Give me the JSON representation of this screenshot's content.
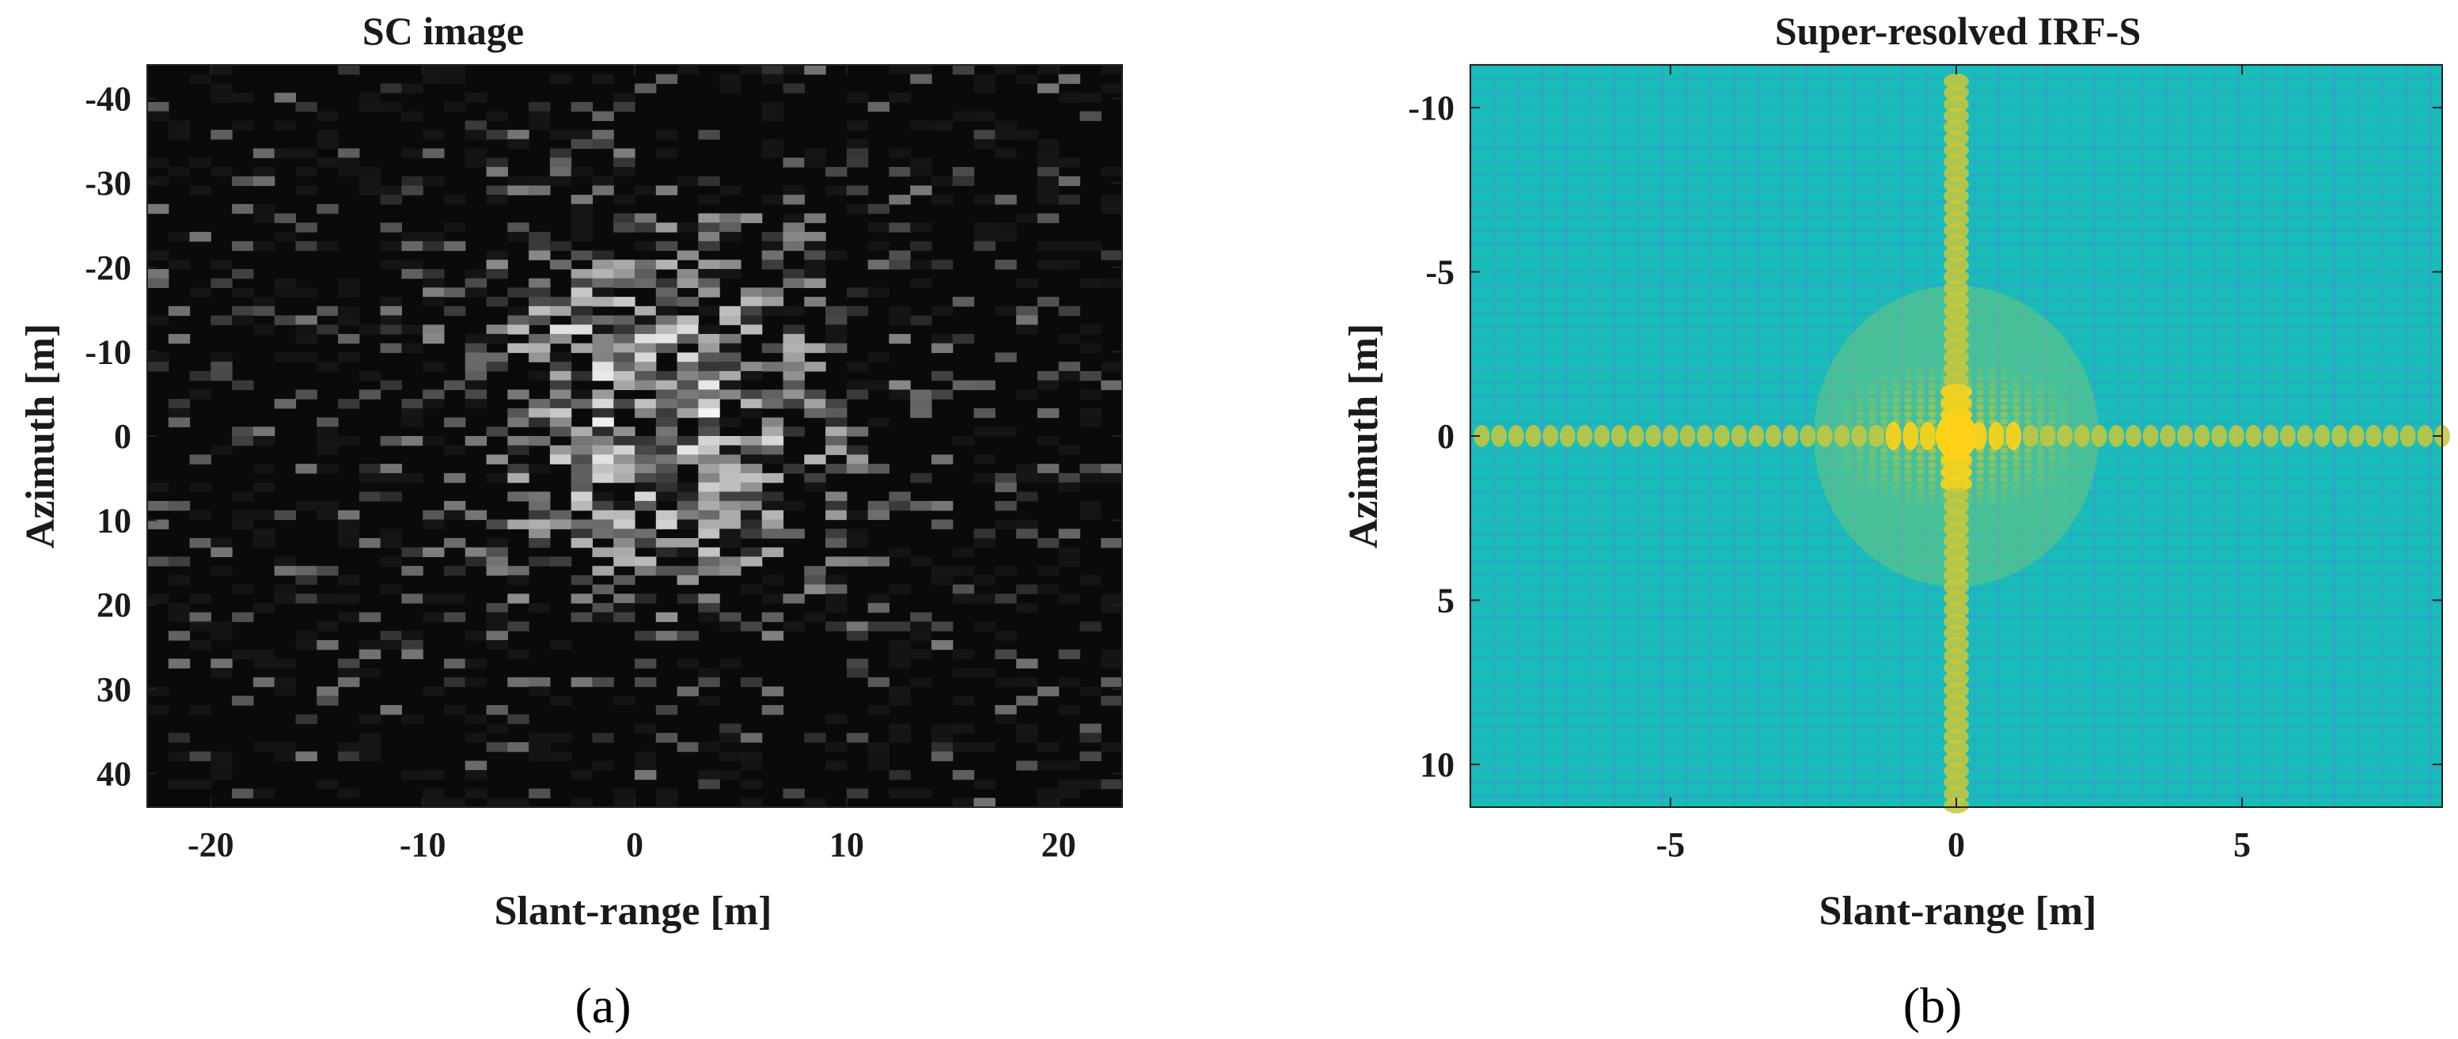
{
  "chart_data": [
    {
      "type": "heatmap",
      "panel_label": "(a)",
      "title": "SC image",
      "xlabel": "Slant-range [m]",
      "ylabel": "Azimuth [m]",
      "xlim": [
        -23,
        23
      ],
      "ylim": [
        44,
        -44
      ],
      "x_ticks": [
        -20,
        -10,
        0,
        10,
        20
      ],
      "x_tick_labels": [
        "-20",
        "-10",
        "0",
        "10",
        "20"
      ],
      "y_ticks": [
        -40,
        -30,
        -20,
        -10,
        0,
        10,
        20,
        30,
        40
      ],
      "y_tick_labels": [
        "-40",
        "-30",
        "-20",
        "-10",
        "0",
        "10",
        "20",
        "30",
        "40"
      ],
      "colormap": "gray",
      "background_color": "#0a0a0a",
      "cell_size_m": [
        1.0,
        1.1
      ],
      "bright_region": {
        "x_center": [
          1,
          -2,
          3
        ],
        "y_center": [
          -2,
          -12,
          6
        ],
        "x_spread": [
          8,
          6,
          5
        ],
        "y_spread": [
          20,
          10,
          8
        ],
        "peak_intensity": [
          0.9,
          0.75,
          0.8
        ]
      },
      "grid": false
    },
    {
      "type": "heatmap",
      "panel_label": "(b)",
      "title": "Super-resolved IRF-S",
      "xlabel": "Slant-range [m]",
      "ylabel": "Azimuth [m]",
      "xlim": [
        -8.5,
        8.5
      ],
      "ylim": [
        11.3,
        -11.3
      ],
      "x_ticks": [
        -5,
        0,
        5
      ],
      "x_tick_labels": [
        "-5",
        "0",
        "5"
      ],
      "y_ticks": [
        -10,
        -5,
        0,
        5,
        10
      ],
      "y_tick_labels": [
        "-10",
        "-5",
        "0",
        "5",
        "10"
      ],
      "colormap": "parula",
      "background_color": "#18bcb8",
      "peak": {
        "x": 0,
        "y": 0,
        "color": "#ffd21a"
      },
      "sidelobe_color": "#c8c83c",
      "grid_line_color": "#4a8ed8",
      "grid": false
    }
  ]
}
